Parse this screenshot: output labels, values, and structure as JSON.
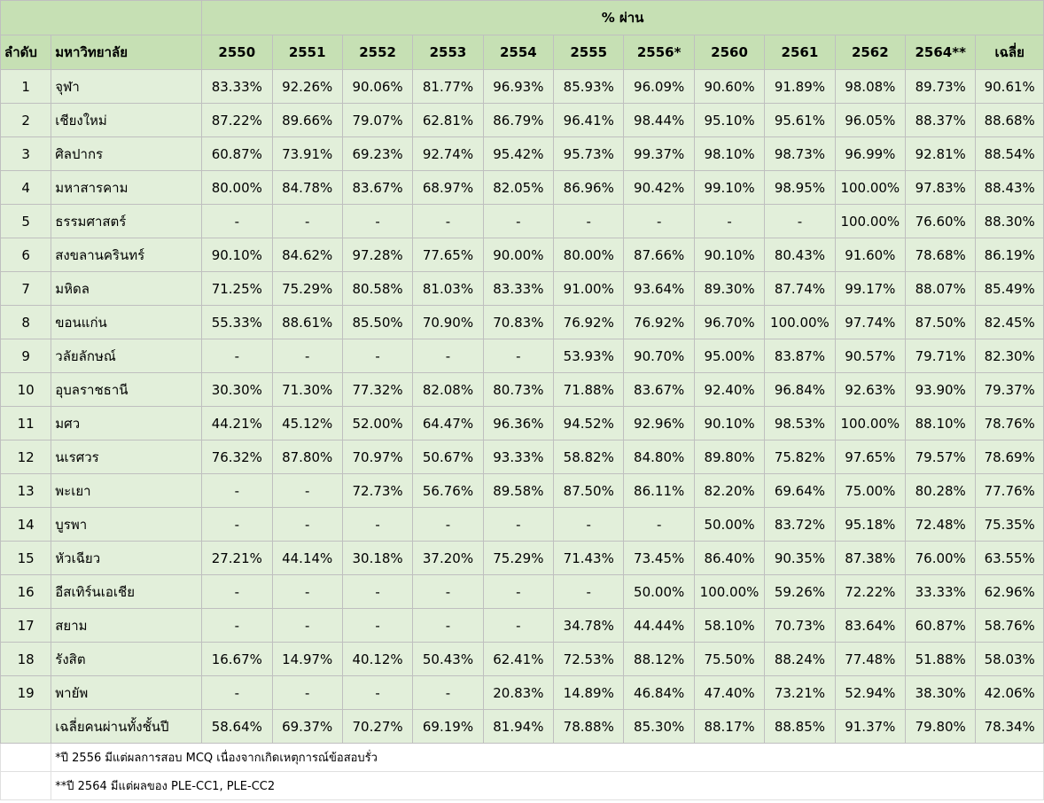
{
  "header": {
    "group_title": "% ผ่าน",
    "rank_label": "ลำดับ",
    "university_label": "มหาวิทยาลัย",
    "years": [
      "2550",
      "2551",
      "2552",
      "2553",
      "2554",
      "2555",
      "2556*",
      "2560",
      "2561",
      "2562",
      "2564**",
      "เฉลี่ย"
    ]
  },
  "rows": [
    {
      "rank": "1",
      "name": "จุฬา",
      "values": [
        "83.33%",
        "92.26%",
        "90.06%",
        "81.77%",
        "96.93%",
        "85.93%",
        "96.09%",
        "90.60%",
        "91.89%",
        "98.08%",
        "89.73%",
        "90.61%"
      ]
    },
    {
      "rank": "2",
      "name": "เชียงใหม่",
      "values": [
        "87.22%",
        "89.66%",
        "79.07%",
        "62.81%",
        "86.79%",
        "96.41%",
        "98.44%",
        "95.10%",
        "95.61%",
        "96.05%",
        "88.37%",
        "88.68%"
      ]
    },
    {
      "rank": "3",
      "name": "ศิลปากร",
      "values": [
        "60.87%",
        "73.91%",
        "69.23%",
        "92.74%",
        "95.42%",
        "95.73%",
        "99.37%",
        "98.10%",
        "98.73%",
        "96.99%",
        "92.81%",
        "88.54%"
      ]
    },
    {
      "rank": "4",
      "name": "มหาสารคาม",
      "values": [
        "80.00%",
        "84.78%",
        "83.67%",
        "68.97%",
        "82.05%",
        "86.96%",
        "90.42%",
        "99.10%",
        "98.95%",
        "100.00%",
        "97.83%",
        "88.43%"
      ]
    },
    {
      "rank": "5",
      "name": "ธรรมศาสตร์",
      "values": [
        "-",
        "-",
        "-",
        "-",
        "-",
        "-",
        "-",
        "-",
        "-",
        "100.00%",
        "76.60%",
        "88.30%"
      ]
    },
    {
      "rank": "6",
      "name": "สงขลานครินทร์",
      "values": [
        "90.10%",
        "84.62%",
        "97.28%",
        "77.65%",
        "90.00%",
        "80.00%",
        "87.66%",
        "90.10%",
        "80.43%",
        "91.60%",
        "78.68%",
        "86.19%"
      ]
    },
    {
      "rank": "7",
      "name": "มหิดล",
      "values": [
        "71.25%",
        "75.29%",
        "80.58%",
        "81.03%",
        "83.33%",
        "91.00%",
        "93.64%",
        "89.30%",
        "87.74%",
        "99.17%",
        "88.07%",
        "85.49%"
      ]
    },
    {
      "rank": "8",
      "name": "ขอนแก่น",
      "values": [
        "55.33%",
        "88.61%",
        "85.50%",
        "70.90%",
        "70.83%",
        "76.92%",
        "76.92%",
        "96.70%",
        "100.00%",
        "97.74%",
        "87.50%",
        "82.45%"
      ]
    },
    {
      "rank": "9",
      "name": "วลัยลักษณ์",
      "values": [
        "-",
        "-",
        "-",
        "-",
        "-",
        "53.93%",
        "90.70%",
        "95.00%",
        "83.87%",
        "90.57%",
        "79.71%",
        "82.30%"
      ]
    },
    {
      "rank": "10",
      "name": "อุบลราชธานี",
      "values": [
        "30.30%",
        "71.30%",
        "77.32%",
        "82.08%",
        "80.73%",
        "71.88%",
        "83.67%",
        "92.40%",
        "96.84%",
        "92.63%",
        "93.90%",
        "79.37%"
      ]
    },
    {
      "rank": "11",
      "name": "มศว",
      "values": [
        "44.21%",
        "45.12%",
        "52.00%",
        "64.47%",
        "96.36%",
        "94.52%",
        "92.96%",
        "90.10%",
        "98.53%",
        "100.00%",
        "88.10%",
        "78.76%"
      ]
    },
    {
      "rank": "12",
      "name": "นเรศวร",
      "values": [
        "76.32%",
        "87.80%",
        "70.97%",
        "50.67%",
        "93.33%",
        "58.82%",
        "84.80%",
        "89.80%",
        "75.82%",
        "97.65%",
        "79.57%",
        "78.69%"
      ]
    },
    {
      "rank": "13",
      "name": "พะเยา",
      "values": [
        "-",
        "-",
        "72.73%",
        "56.76%",
        "89.58%",
        "87.50%",
        "86.11%",
        "82.20%",
        "69.64%",
        "75.00%",
        "80.28%",
        "77.76%"
      ]
    },
    {
      "rank": "14",
      "name": "บูรพา",
      "values": [
        "-",
        "-",
        "-",
        "-",
        "-",
        "-",
        "-",
        "50.00%",
        "83.72%",
        "95.18%",
        "72.48%",
        "75.35%"
      ]
    },
    {
      "rank": "15",
      "name": "หัวเฉียว",
      "values": [
        "27.21%",
        "44.14%",
        "30.18%",
        "37.20%",
        "75.29%",
        "71.43%",
        "73.45%",
        "86.40%",
        "90.35%",
        "87.38%",
        "76.00%",
        "63.55%"
      ]
    },
    {
      "rank": "16",
      "name": "อีสเทิร์นเอเชีย",
      "values": [
        "-",
        "-",
        "-",
        "-",
        "-",
        "-",
        "50.00%",
        "100.00%",
        "59.26%",
        "72.22%",
        "33.33%",
        "62.96%"
      ]
    },
    {
      "rank": "17",
      "name": "สยาม",
      "values": [
        "-",
        "-",
        "-",
        "-",
        "-",
        "34.78%",
        "44.44%",
        "58.10%",
        "70.73%",
        "83.64%",
        "60.87%",
        "58.76%"
      ]
    },
    {
      "rank": "18",
      "name": "รังสิต",
      "values": [
        "16.67%",
        "14.97%",
        "40.12%",
        "50.43%",
        "62.41%",
        "72.53%",
        "88.12%",
        "75.50%",
        "88.24%",
        "77.48%",
        "51.88%",
        "58.03%"
      ]
    },
    {
      "rank": "19",
      "name": "พายัพ",
      "values": [
        "-",
        "-",
        "-",
        "-",
        "20.83%",
        "14.89%",
        "46.84%",
        "47.40%",
        "73.21%",
        "52.94%",
        "38.30%",
        "42.06%"
      ]
    }
  ],
  "average_row": {
    "label": "เฉลี่ยคนผ่านทั้งชั้นปี",
    "values": [
      "58.64%",
      "69.37%",
      "70.27%",
      "69.19%",
      "81.94%",
      "78.88%",
      "85.30%",
      "88.17%",
      "88.85%",
      "91.37%",
      "79.80%",
      "78.34%"
    ]
  },
  "notes": [
    "*ปี 2556 มีแต่ผลการสอบ MCQ เนื่องจากเกิดเหตุการณ์ข้อสอบรั่ว",
    "**ปี 2564 มีแต่ผลของ PLE-CC1, PLE-CC2"
  ]
}
